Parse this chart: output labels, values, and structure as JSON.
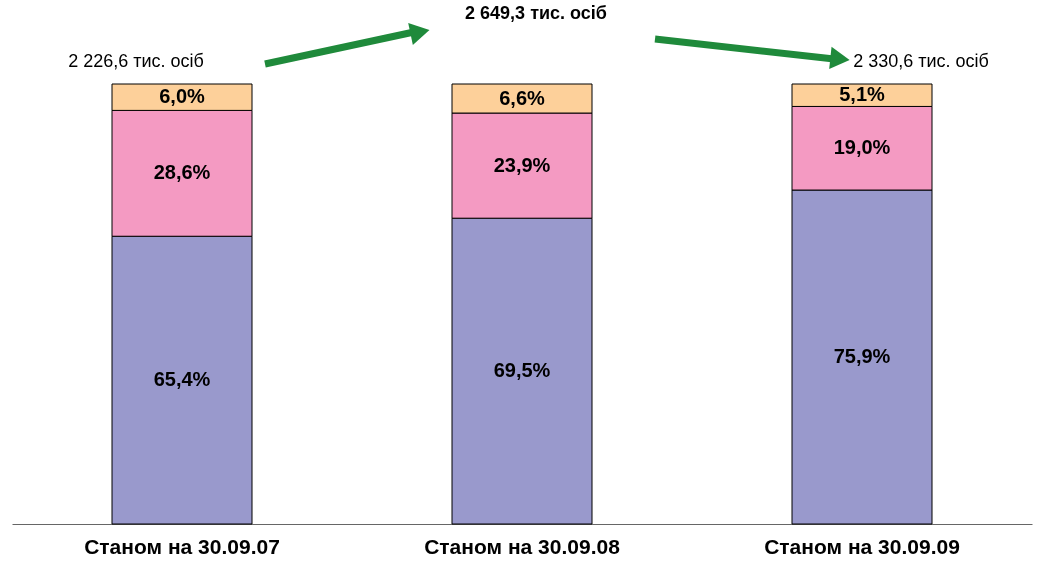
{
  "chart_data": {
    "type": "bar",
    "stacked": true,
    "categories": [
      "Станом на 30.09.07",
      "Станом на 30.09.08",
      "Станом на 30.09.09"
    ],
    "series": [
      {
        "color": "#9999cc",
        "values": [
          65.4,
          69.5,
          75.9
        ],
        "value_labels": [
          "65,4%",
          "69,5%",
          "75,9%"
        ]
      },
      {
        "color": "#f49ac2",
        "values": [
          28.6,
          23.9,
          19.0
        ],
        "value_labels": [
          "28,6%",
          "23,9%",
          "19,0%"
        ]
      },
      {
        "color": "#fdd09a",
        "values": [
          6.0,
          6.6,
          5.1
        ],
        "value_labels": [
          "6,0%",
          "6,6%",
          "5,1%"
        ]
      }
    ],
    "annotations": [
      "2 226,6 тис. осіб",
      "2 649,3 тис. осіб",
      "2 330,6 тис. осіб"
    ],
    "ylim": [
      0,
      100
    ],
    "tick_labels": "x"
  }
}
